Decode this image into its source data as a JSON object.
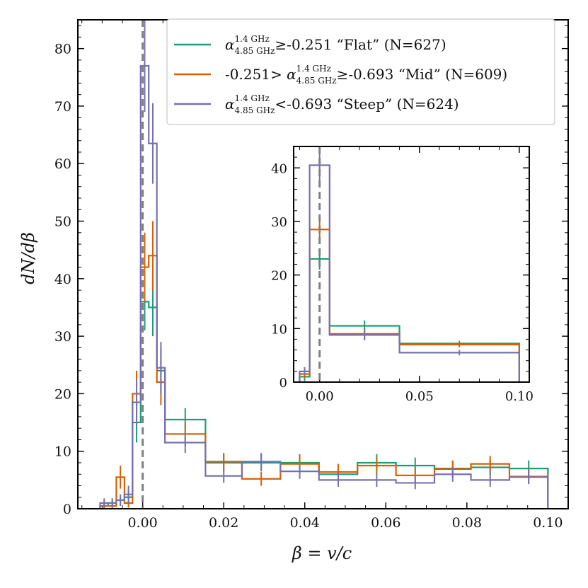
{
  "chart_data": {
    "type": "histogram-step",
    "title": "",
    "xlabel": "β = v/c",
    "ylabel": "dN/dβ",
    "xlim": [
      -0.016,
      0.105
    ],
    "ylim": [
      0,
      85
    ],
    "xticks": [
      0.0,
      0.02,
      0.04,
      0.06,
      0.08,
      0.1
    ],
    "xtick_labels": [
      "0.00",
      "0.02",
      "0.04",
      "0.06",
      "0.08",
      "0.10"
    ],
    "yticks": [
      0,
      10,
      20,
      30,
      40,
      50,
      60,
      70,
      80
    ],
    "ytick_labels": [
      "0",
      "10",
      "20",
      "30",
      "40",
      "50",
      "60",
      "70",
      "80"
    ],
    "reference_line": {
      "x": 0.0,
      "style": "dashed",
      "color": "#808080"
    },
    "legend_position": "top-right",
    "bin_edges": [
      -0.0105,
      -0.0085,
      -0.0065,
      -0.0045,
      -0.0025,
      -0.0005,
      0.0015,
      0.0035,
      0.0055,
      0.0155,
      0.0245,
      0.034,
      0.0435,
      0.053,
      0.0625,
      0.072,
      0.081,
      0.0905,
      0.1
    ],
    "series": [
      {
        "name": "Flat",
        "legend": {
          "prefix": "",
          "symbol": "α",
          "sup": "1.4 GHz",
          "sub": "4.85 GHz",
          "suffix": "≥-0.251 “Flat” (N=627)"
        },
        "color": "#1b9e77",
        "values": [
          0.5,
          1.0,
          1.5,
          2.0,
          15.0,
          36.0,
          35.0,
          24.0,
          15.5,
          8.0,
          8.0,
          8.0,
          6.0,
          8.0,
          7.5,
          7.0,
          7.2,
          7.0
        ],
        "errors": [
          0.6,
          0.8,
          1.0,
          1.2,
          3.5,
          5.0,
          5.0,
          4.0,
          2.0,
          1.5,
          1.5,
          1.5,
          1.4,
          1.5,
          1.4,
          1.4,
          1.4,
          1.4
        ]
      },
      {
        "name": "Mid",
        "legend": {
          "prefix": "-0.251> ",
          "symbol": "α",
          "sup": "1.4 GHz",
          "sub": "4.85 GHz",
          "suffix": "≥-0.693 “Mid” (N=609)"
        },
        "color": "#d95f02",
        "values": [
          0.5,
          0.5,
          5.5,
          1.0,
          20.0,
          42.0,
          44.0,
          22.0,
          13.0,
          8.2,
          5.2,
          7.8,
          6.4,
          7.5,
          5.8,
          6.9,
          7.8,
          5.6
        ],
        "errors": [
          0.5,
          0.6,
          2.0,
          0.8,
          4.0,
          6.0,
          6.0,
          4.0,
          2.0,
          1.5,
          1.2,
          1.5,
          1.4,
          1.5,
          1.3,
          1.4,
          1.4,
          1.3
        ]
      },
      {
        "name": "Steep",
        "legend": {
          "prefix": "",
          "symbol": "α",
          "sup": "1.4 GHz",
          "sub": "4.85 GHz",
          "suffix": "<-0.693 “Steep” (N=624)"
        },
        "color": "#7570b3",
        "values": [
          1.0,
          1.0,
          1.5,
          2.5,
          18.5,
          77.0,
          63.5,
          24.5,
          11.5,
          5.7,
          8.2,
          6.5,
          5.0,
          5.0,
          4.5,
          6.0,
          5.0,
          5.5
        ],
        "errors": [
          0.8,
          0.8,
          1.0,
          1.5,
          4.0,
          8.0,
          7.0,
          4.5,
          1.8,
          1.2,
          1.5,
          1.3,
          1.2,
          1.2,
          1.1,
          1.3,
          1.2,
          1.2
        ]
      }
    ],
    "inset": {
      "xlim": [
        -0.013,
        0.105
      ],
      "ylim": [
        0,
        44
      ],
      "xticks": [
        0.0,
        0.05,
        0.1
      ],
      "xtick_labels": [
        "0.00",
        "0.05",
        "0.10"
      ],
      "yticks": [
        0,
        10,
        20,
        30,
        40
      ],
      "ytick_labels": [
        "0",
        "10",
        "20",
        "30",
        "40"
      ],
      "bin_edges": [
        -0.01,
        -0.005,
        0.005,
        0.04,
        0.1
      ],
      "series": [
        {
          "name": "Flat",
          "color": "#1b9e77",
          "values": [
            1.0,
            23.0,
            10.5,
            7.2
          ],
          "errors": [
            0.8,
            2.0,
            1.0,
            0.5
          ]
        },
        {
          "name": "Mid",
          "color": "#d95f02",
          "values": [
            1.5,
            28.5,
            9.0,
            7.0
          ],
          "errors": [
            0.8,
            2.5,
            1.0,
            0.5
          ]
        },
        {
          "name": "Steep",
          "color": "#7570b3",
          "values": [
            2.0,
            40.5,
            8.8,
            5.5
          ],
          "errors": [
            0.8,
            3.0,
            1.0,
            0.5
          ]
        }
      ]
    }
  }
}
